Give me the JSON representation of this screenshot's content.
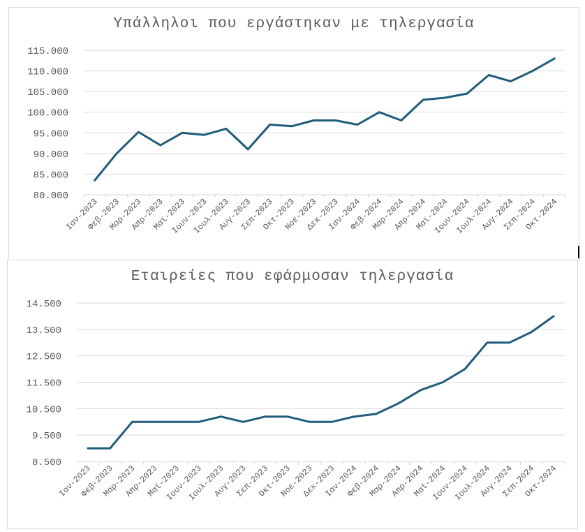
{
  "theme": {
    "line_color": "#1f5c7a",
    "grid_color": "#d9d9d9",
    "text_color": "#595959",
    "frame_color": "#d9d9d9"
  },
  "chart_data": [
    {
      "type": "line",
      "title": "Υπάλληλοι που εργάστηκαν με τηλεργασία",
      "xlabel": "",
      "ylabel": "",
      "categories": [
        "Ιαν-2023",
        "Φεβ-2023",
        "Μαρ-2023",
        "Απρ-2023",
        "Μαϊ-2023",
        "Ιουν-2023",
        "Ιουλ-2023",
        "Αυγ-2023",
        "Σεπ-2023",
        "Οκτ-2023",
        "Νοε-2023",
        "Δεκ-2023",
        "Ιαν-2024",
        "Φεβ-2024",
        "Μαρ-2024",
        "Απρ-2024",
        "Μαϊ-2024",
        "Ιουν-2024",
        "Ιουλ-2024",
        "Αυγ-2024",
        "Σεπ-2024",
        "Οκτ-2024"
      ],
      "values": [
        83500,
        90000,
        95200,
        92000,
        95000,
        94500,
        96000,
        91000,
        97000,
        96600,
        98000,
        98000,
        97000,
        100000,
        98000,
        103000,
        103500,
        104500,
        109000,
        107500,
        110000,
        113000
      ],
      "yticks": [
        "115.000",
        "110.000",
        "105.000",
        "100.000",
        "95.000",
        "90.000",
        "85.000",
        "80.000"
      ],
      "ylim": [
        80000,
        115000
      ],
      "ystep": 5000,
      "grid": true,
      "legend": null
    },
    {
      "type": "line",
      "title": "Εταιρείες που εφάρμοσαν τηλεργασία",
      "xlabel": "",
      "ylabel": "",
      "categories": [
        "Ιαν-2023",
        "Φεβ-2023",
        "Μαρ-2023",
        "Απρ-2023",
        "Μαϊ-2023",
        "Ιουν-2023",
        "Ιουλ-2023",
        "Αυγ-2023",
        "Σεπ-2023",
        "Οκτ-2023",
        "Νοε-2023",
        "Δεκ-2023",
        "Ιαν-2024",
        "Φεβ-2024",
        "Μαρ-2024",
        "Απρ-2024",
        "Μαϊ-2024",
        "Ιουν-2024",
        "Ιουλ-2024",
        "Αυγ-2024",
        "Σεπ-2024",
        "Οκτ-2024"
      ],
      "values": [
        9000,
        9000,
        10000,
        10000,
        10000,
        10000,
        10200,
        10000,
        10200,
        10200,
        10000,
        10000,
        10200,
        10300,
        10700,
        11200,
        11500,
        12000,
        13000,
        13000,
        13400,
        14000
      ],
      "yticks": [
        "14.500",
        "13.500",
        "12.500",
        "11.500",
        "10.500",
        "9.500",
        "8.500"
      ],
      "ylim": [
        8500,
        14500
      ],
      "ystep": 1000,
      "grid": true,
      "legend": null
    }
  ]
}
